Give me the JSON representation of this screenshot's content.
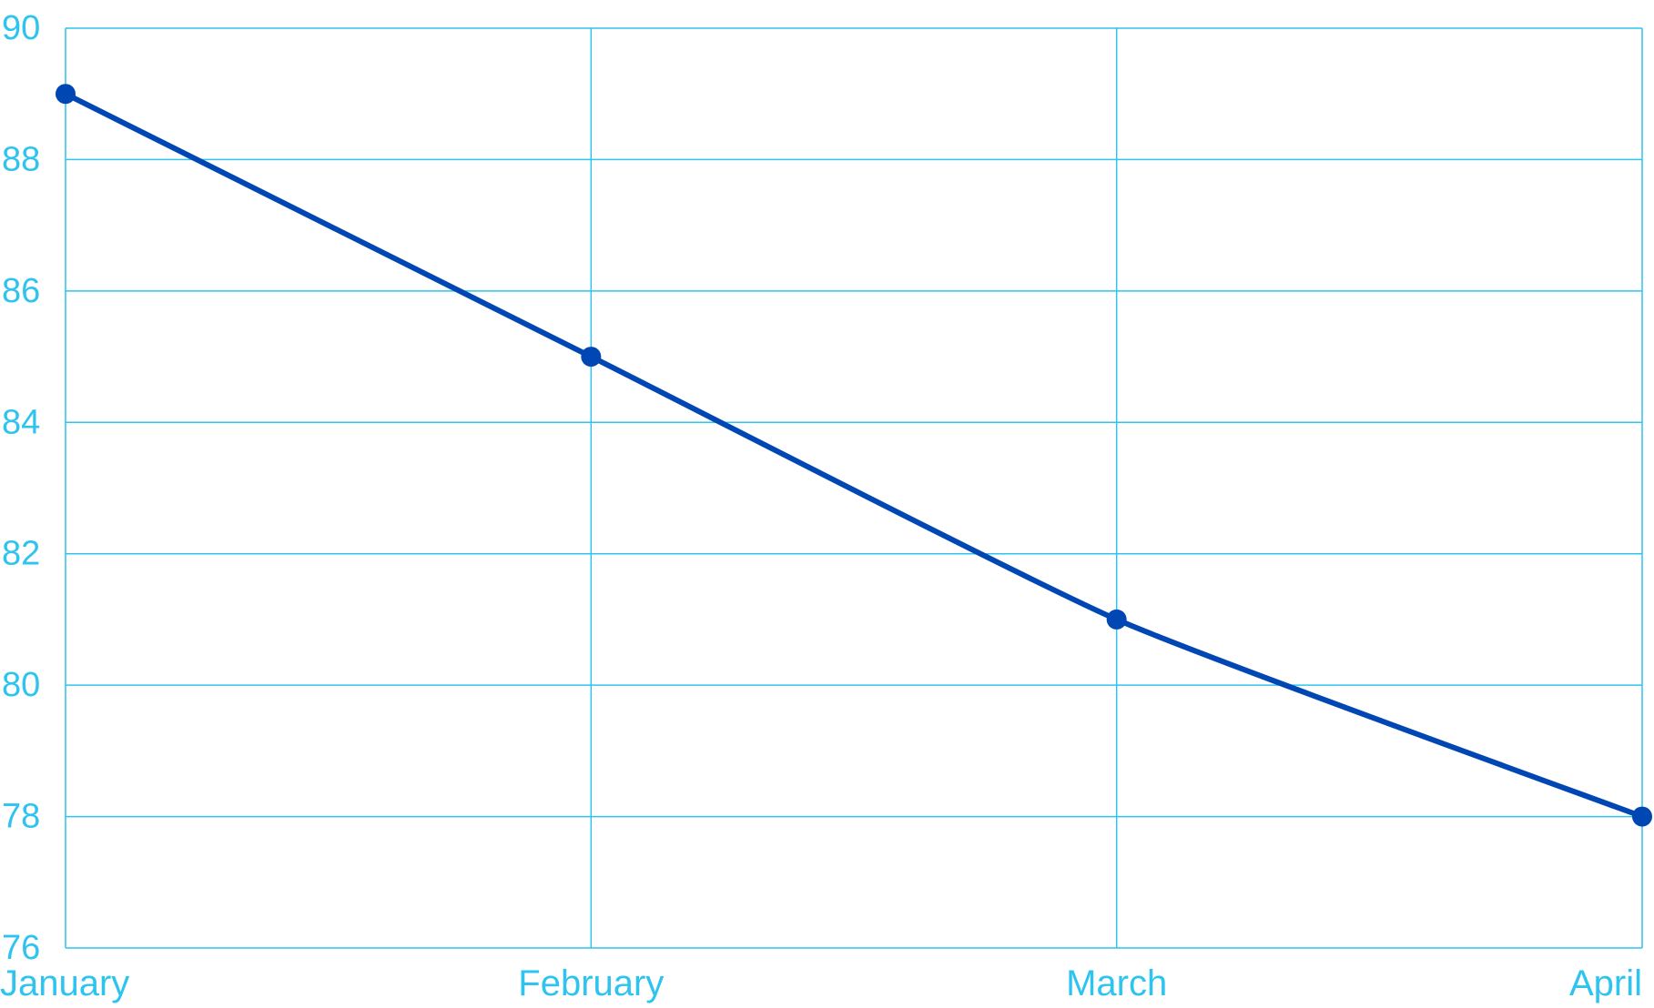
{
  "chart_data": {
    "type": "line",
    "categories": [
      "January",
      "February",
      "March",
      "April"
    ],
    "series": [
      {
        "values": [
          89,
          85,
          81,
          78
        ]
      }
    ],
    "title": "",
    "xlabel": "",
    "ylabel": "",
    "ylim": [
      76,
      90
    ],
    "yticks": [
      "76",
      "78",
      "80",
      "82",
      "84",
      "86",
      "88",
      "90"
    ],
    "grid": true,
    "legend": "none",
    "colors": {
      "line": "#0047b3",
      "grid": "#2ec4ef",
      "tick_text": "#2ec4ef",
      "background": "#ffffff"
    }
  }
}
